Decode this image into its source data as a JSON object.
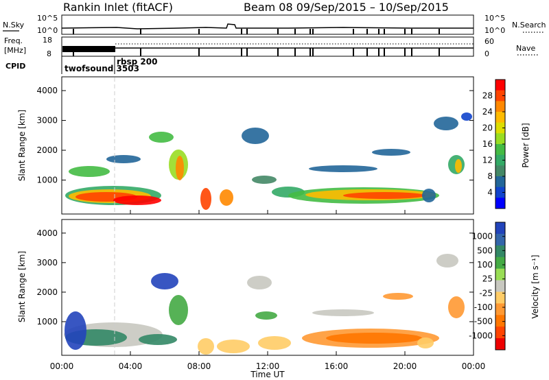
{
  "header": {
    "title": "Rankin Inlet (fitACF)",
    "beam_dates": "Beam 08  09/Sep/2015 – 10/Sep/2015"
  },
  "strip_panels": {
    "nsky_label": "N.Sky",
    "nsky_ticks": [
      "10^5",
      "10^0"
    ],
    "nsearch_label": "N.Search",
    "nsearch_ticks": [
      "10^5",
      "10^0"
    ],
    "freq_label_1": "Freq.",
    "freq_label_2": "[MHz]",
    "freq_ticks": [
      "18",
      "8"
    ],
    "nave_label": "Nave",
    "nave_ticks": [
      "60",
      "0"
    ],
    "cpid_label": "CPID",
    "cpid_modes": [
      "twofsound 3503",
      "rbsp 200"
    ]
  },
  "chart_data": [
    {
      "type": "heatmap",
      "name": "power",
      "ylabel": "Slant Range [km]",
      "yticks": [
        "4000",
        "3000",
        "2000",
        "1000"
      ],
      "colorbar_label": "Power [dB]",
      "colorbar_ticks": [
        "28",
        "24",
        "20",
        "16",
        "12",
        "8",
        "4"
      ],
      "colorbar_colors": [
        "#ff0000",
        "#ff4400",
        "#ff8800",
        "#ffbb00",
        "#dddd00",
        "#99dd22",
        "#44bb44",
        "#33aa66",
        "#448866",
        "#226699",
        "#1144cc",
        "#0000ff"
      ]
    },
    {
      "type": "heatmap",
      "name": "velocity",
      "ylabel": "Slant Range [km]",
      "yticks": [
        "4000",
        "3000",
        "2000",
        "1000"
      ],
      "colorbar_label": "Velocity [m s⁻¹]",
      "colorbar_ticks": [
        "1000",
        "500",
        "100",
        "25",
        "-25",
        "-100",
        "-500",
        "-1000"
      ],
      "colorbar_colors": [
        "#2244bb",
        "#3366aa",
        "#338866",
        "#44aa44",
        "#99dd55",
        "#c8c8c0",
        "#ffcc66",
        "#ff9933",
        "#ff7700",
        "#ff4400",
        "#ee0000"
      ]
    }
  ],
  "time_axis": {
    "label": "Time UT",
    "ticks": [
      "00:00",
      "04:00",
      "08:00",
      "12:00",
      "16:00",
      "20:00",
      "00:00"
    ]
  }
}
